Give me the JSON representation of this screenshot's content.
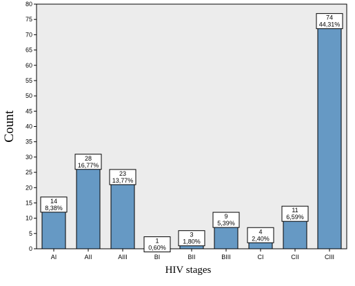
{
  "chart_data": {
    "type": "bar",
    "title": "",
    "xlabel": "HIV stages",
    "ylabel": "Count",
    "ylim": [
      0,
      80
    ],
    "yticks": [
      0,
      5,
      10,
      15,
      20,
      25,
      30,
      35,
      40,
      45,
      50,
      55,
      60,
      65,
      70,
      75,
      80
    ],
    "grid": false,
    "legend": "none",
    "categories": [
      "AI",
      "AII",
      "AIII",
      "BI",
      "BII",
      "BIII",
      "CI",
      "CII",
      "CIII"
    ],
    "values": [
      14,
      28,
      23,
      1,
      3,
      9,
      4,
      11,
      74
    ],
    "percent_labels": [
      "8,38%",
      "16,77%",
      "13,77%",
      "0,60%",
      "1,80%",
      "5,39%",
      "2,40%",
      "6,59%",
      "44,31%"
    ],
    "colors": {
      "bar_fill": "#6699c4",
      "plot_background": "#ececec",
      "label_box_fill": "#ffffff",
      "outline": "#000000"
    }
  }
}
